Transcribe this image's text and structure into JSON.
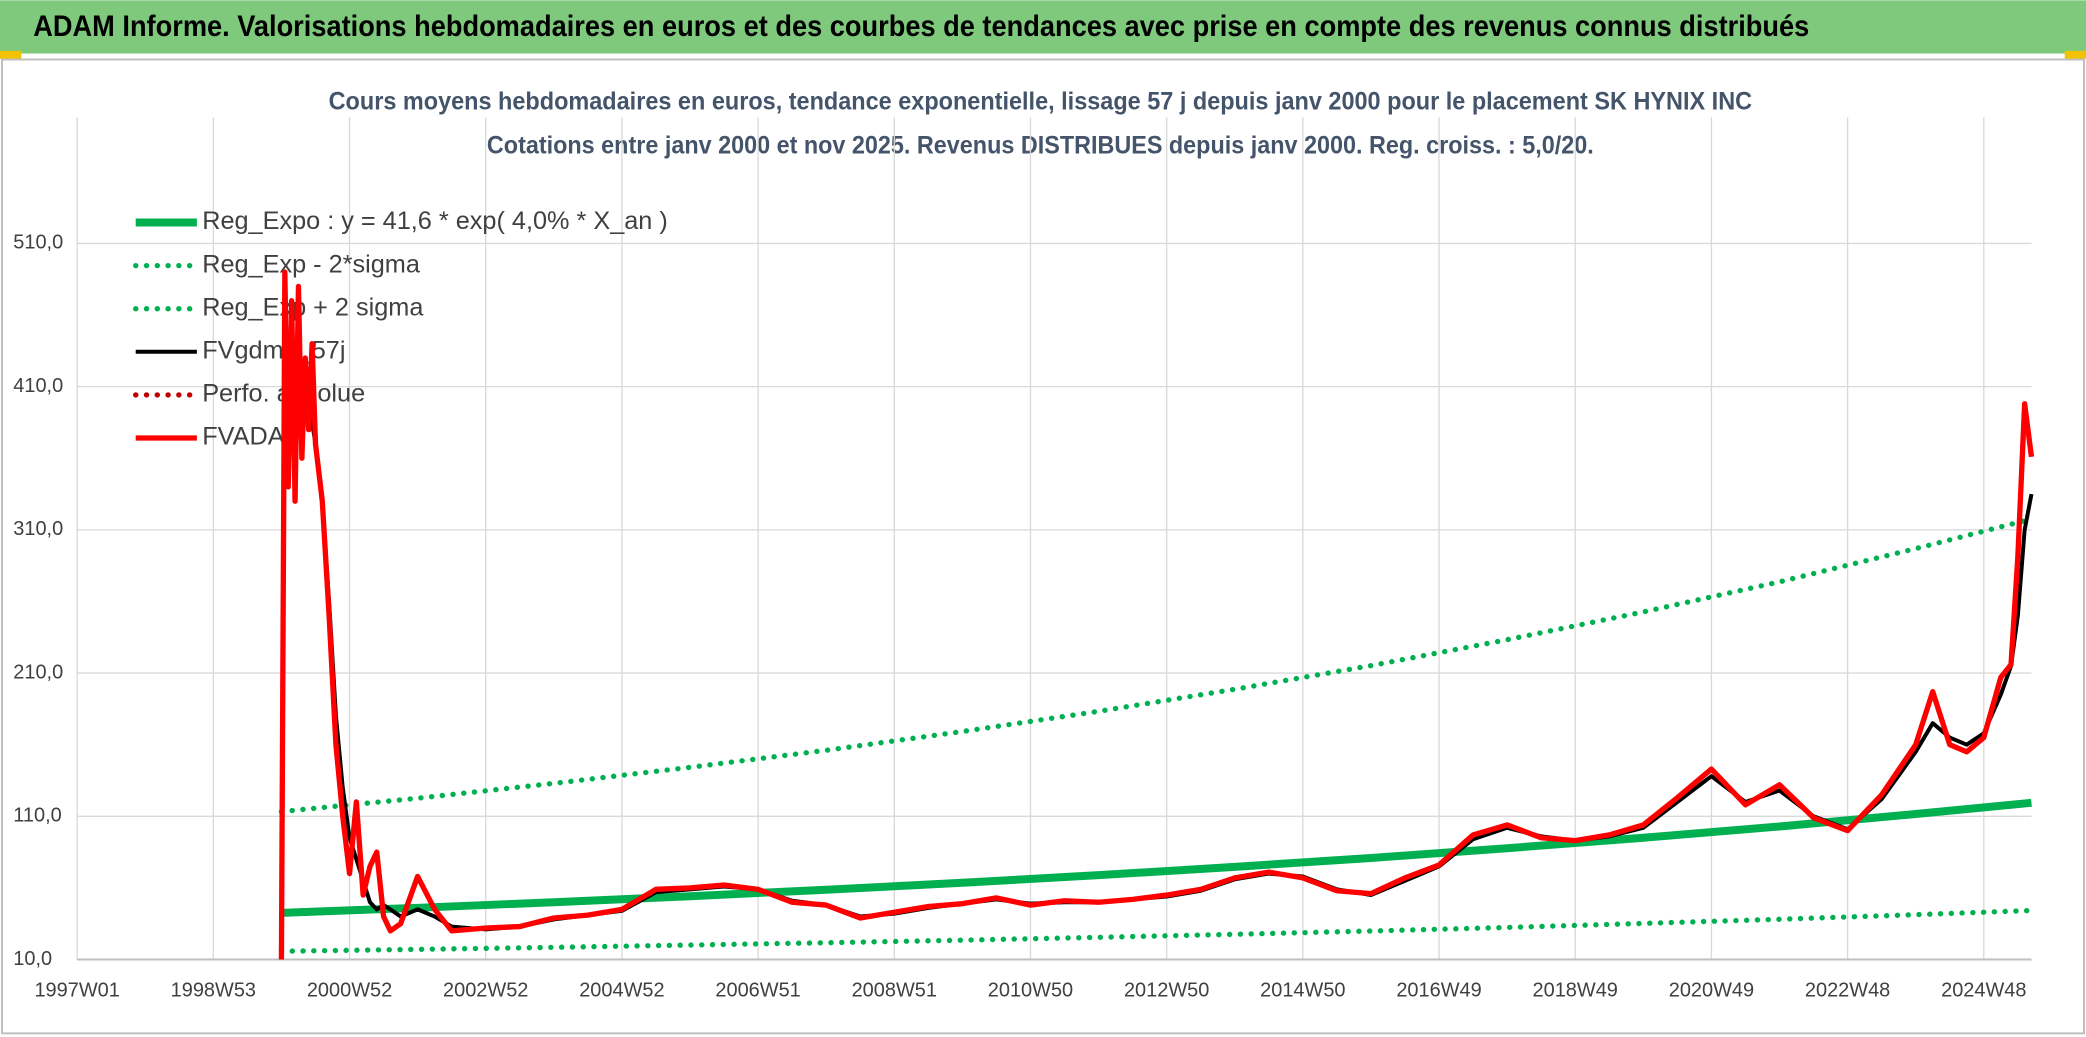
{
  "header": {
    "title": "ADAM Informe. Valorisations hebdomadaires en euros et des courbes de tendances avec prise en compte des revenus connus distribués"
  },
  "chart_data": {
    "type": "line",
    "title": "Cours moyens hebdomadaires en euros, tendance exponentielle, lissage 57 j depuis janv 2000 pour le placement SK HYNIX INC",
    "subtitle": "Cotations entre janv 2000 et nov 2025. Revenus DISTRIBUES depuis janv 2000. Reg. croiss. : 5,0/20.",
    "xlim": [
      1997,
      2025.7
    ],
    "xticks": [
      {
        "value": 1997,
        "label": "1997W01"
      },
      {
        "value": 1999,
        "label": "1998W53"
      },
      {
        "value": 2001,
        "label": "2000W52"
      },
      {
        "value": 2003,
        "label": "2002W52"
      },
      {
        "value": 2005,
        "label": "2004W52"
      },
      {
        "value": 2007,
        "label": "2006W51"
      },
      {
        "value": 2009,
        "label": "2008W51"
      },
      {
        "value": 2011,
        "label": "2010W50"
      },
      {
        "value": 2013,
        "label": "2012W50"
      },
      {
        "value": 2015,
        "label": "2014W50"
      },
      {
        "value": 2017,
        "label": "2016W49"
      },
      {
        "value": 2019,
        "label": "2018W49"
      },
      {
        "value": 2021,
        "label": "2020W49"
      },
      {
        "value": 2023,
        "label": "2022W48"
      },
      {
        "value": 2025,
        "label": "2024W48"
      }
    ],
    "ylim": [
      10,
      598
    ],
    "yticks": [
      {
        "value": 10,
        "label": "10,0"
      },
      {
        "value": 110,
        "label": "110,0"
      },
      {
        "value": 210,
        "label": "210,0"
      },
      {
        "value": 310,
        "label": "310,0"
      },
      {
        "value": 410,
        "label": "410,0"
      },
      {
        "value": 510,
        "label": "510,0"
      }
    ],
    "grid": true,
    "legend": "upper left",
    "x": [
      2000.0,
      2000.05,
      2000.1,
      2000.15,
      2000.2,
      2000.25,
      2000.3,
      2000.35,
      2000.4,
      2000.45,
      2000.5,
      2000.6,
      2000.7,
      2000.8,
      2000.9,
      2001.0,
      2001.1,
      2001.2,
      2001.3,
      2001.4,
      2001.5,
      2001.6,
      2001.75,
      2002.0,
      2002.25,
      2002.5,
      2003,
      2003.5,
      2004,
      2004.5,
      2005,
      2005.5,
      2006,
      2006.5,
      2007,
      2007.5,
      2008,
      2008.5,
      2009,
      2009.5,
      2010,
      2010.5,
      2011,
      2011.5,
      2012,
      2012.5,
      2013,
      2013.5,
      2014,
      2014.5,
      2015,
      2015.5,
      2016,
      2016.5,
      2017,
      2017.5,
      2018,
      2018.5,
      2019,
      2019.5,
      2020,
      2020.5,
      2021,
      2021.5,
      2022,
      2022.5,
      2023,
      2023.5,
      2024,
      2024.25,
      2024.5,
      2024.75,
      2025,
      2025.25,
      2025.4,
      2025.5,
      2025.6,
      2025.7
    ],
    "series": [
      {
        "name": "Reg_Expo : y = 41,6 * exp( 4,0% *  X_an )",
        "color": "#00b050",
        "style": "solid",
        "x": [
          2000,
          2002,
          2004,
          2006,
          2008,
          2010,
          2012,
          2014,
          2016,
          2018,
          2020,
          2022,
          2024,
          2025.7
        ],
        "values": [
          42.6,
          46.1,
          50.0,
          54.2,
          58.7,
          63.6,
          68.9,
          74.7,
          80.9,
          87.7,
          95.0,
          102.9,
          111.6,
          119.4
        ]
      },
      {
        "name": "Reg_Exp - 2*sigma",
        "color": "#00b050",
        "style": "dotted",
        "x": [
          2000,
          2002,
          2004,
          2006,
          2008,
          2010,
          2012,
          2014,
          2016,
          2018,
          2020,
          2022,
          2024,
          2025.7
        ],
        "values": [
          15.8,
          17.1,
          18.5,
          20.1,
          21.7,
          23.5,
          25.5,
          27.6,
          29.9,
          32.4,
          35.2,
          38.1,
          41.3,
          44.2
        ]
      },
      {
        "name": "Reg_Exp + 2 sigma",
        "color": "#00b050",
        "style": "dotted",
        "x": [
          2000,
          2002,
          2004,
          2006,
          2008,
          2010,
          2012,
          2014,
          2016,
          2018,
          2020,
          2022,
          2024,
          2025.7
        ],
        "values": [
          113.3,
          122.6,
          133.0,
          144.2,
          156.1,
          169.2,
          183.3,
          198.7,
          215.2,
          233.3,
          252.7,
          273.7,
          296.9,
          317.6
        ]
      },
      {
        "name": "FVgdma_57j",
        "color": "#000000",
        "style": "thin",
        "values": [
          null,
          420,
          410,
          405,
          400,
          400,
          395,
          395,
          390,
          385,
          370,
          330,
          260,
          180,
          130,
          95,
          80,
          65,
          50,
          45,
          48,
          45,
          40,
          45,
          40,
          33,
          31,
          33,
          38,
          41,
          44,
          57,
          59,
          61,
          59,
          51,
          48,
          40,
          42,
          46,
          49,
          52,
          49,
          50,
          50,
          52,
          54,
          58,
          66,
          70,
          68,
          59,
          55,
          65,
          75,
          94,
          102,
          96,
          93,
          96,
          102,
          120,
          138,
          120,
          128,
          110,
          101,
          122,
          155,
          175,
          165,
          160,
          168,
          195,
          215,
          250,
          310,
          335
        ]
      },
      {
        "name": "Perfo. absolue",
        "color": "#c00000",
        "style": "dotted"
      },
      {
        "name": "FVADAM",
        "color": "#ff0000",
        "style": "solid",
        "values": [
          10,
          490,
          340,
          470,
          330,
          480,
          360,
          430,
          380,
          440,
          370,
          330,
          250,
          160,
          110,
          70,
          120,
          55,
          75,
          85,
          40,
          30,
          35,
          68,
          45,
          30,
          32,
          33,
          39,
          41,
          45,
          59,
          60,
          62,
          59,
          50,
          48,
          39,
          43,
          47,
          49,
          53,
          48,
          51,
          50,
          52,
          55,
          59,
          67,
          71,
          67,
          58,
          56,
          67,
          76,
          97,
          104,
          95,
          93,
          97,
          104,
          123,
          143,
          118,
          132,
          109,
          100,
          125,
          160,
          197,
          160,
          155,
          165,
          207,
          216,
          291,
          398,
          361
        ]
      }
    ]
  }
}
